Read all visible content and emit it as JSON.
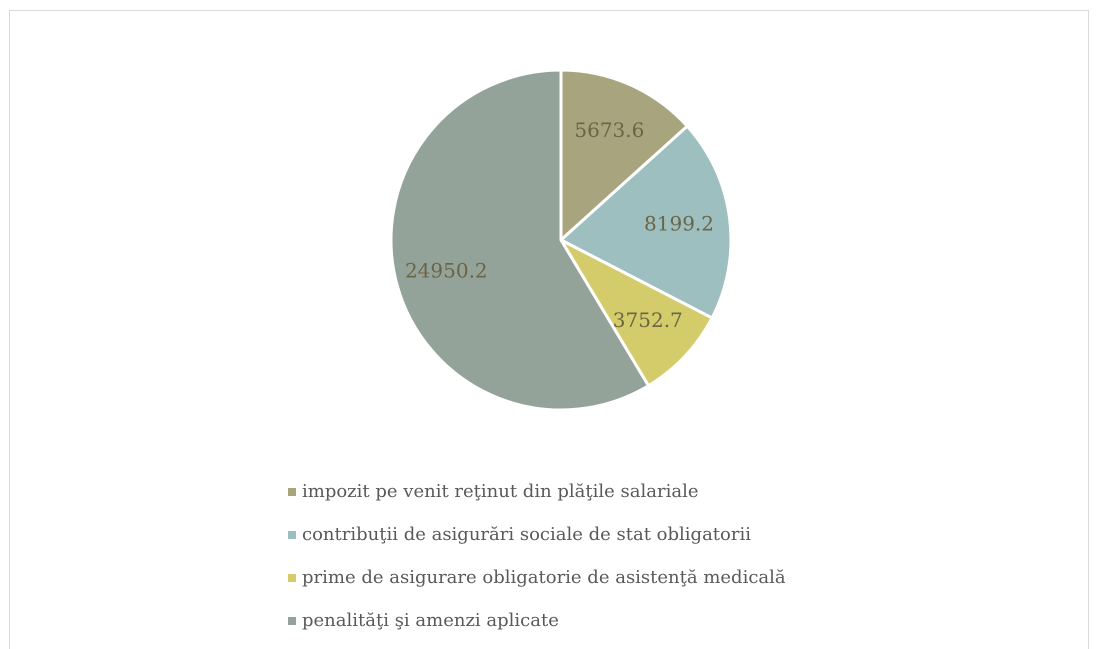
{
  "chart_data": {
    "type": "pie",
    "categories": [
      "impozit pe venit reţinut din plăţile salariale",
      "contribuţii de asigurări sociale de stat obligatorii",
      "prime de asigurare obligatorie de asistenţă medicală",
      "penalităţi şi amenzi aplicate"
    ],
    "values": [
      5673.6,
      8199.2,
      3752.7,
      24950.2
    ],
    "colors": [
      "#a8a57e",
      "#9dbfbf",
      "#d4cc6a",
      "#94a39a"
    ],
    "legend": "bottom"
  }
}
